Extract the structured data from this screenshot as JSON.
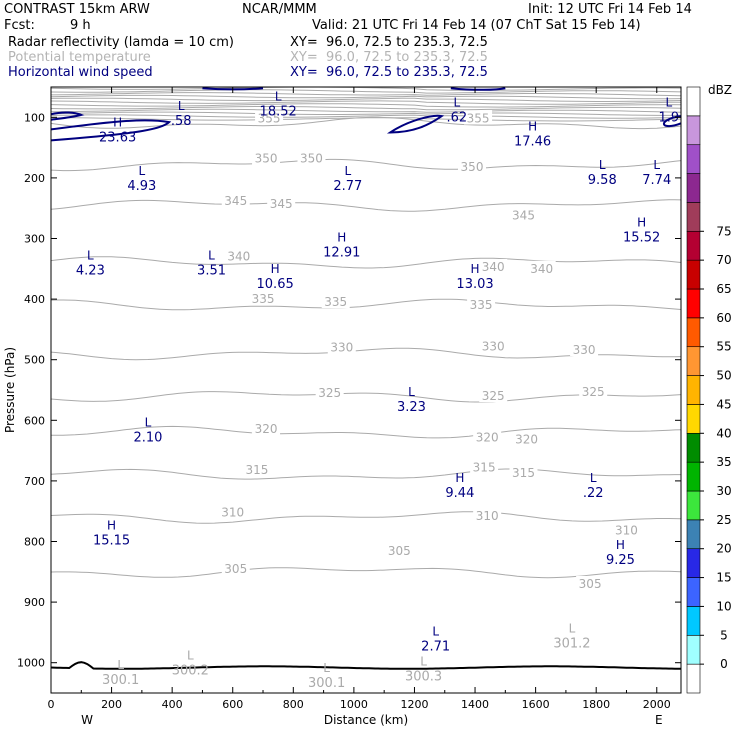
{
  "header": {
    "title": "CONTRAST 15km ARW",
    "center": "NCAR/MMM",
    "init": "Init: 12 UTC Fri 14 Feb 14",
    "fcst_label": "Fcst:",
    "fcst_value": "9 h",
    "valid": "Valid: 21 UTC Fri 14 Feb 14 (07 ChT Sat 15 Feb 14)"
  },
  "fields": [
    {
      "name": "Radar reflectivity (lamda = 10 cm)",
      "xy": "XY=  96.0, 72.5 to 235.3, 72.5",
      "color": "#000000"
    },
    {
      "name": "Potential temperature",
      "xy": "XY=  96.0, 72.5 to 235.3, 72.5",
      "color": "#b4b4b4"
    },
    {
      "name": "Horizontal wind speed",
      "xy": "XY=  96.0, 72.5 to 235.3, 72.5",
      "color": "#000080"
    }
  ],
  "colorbar": {
    "unit": "dBZ",
    "labels": [
      "0",
      "5",
      "10",
      "15",
      "20",
      "25",
      "30",
      "35",
      "40",
      "45",
      "50",
      "55",
      "60",
      "65",
      "70",
      "75"
    ],
    "colors": [
      "#ffffff",
      "#a0ffff",
      "#00c8ff",
      "#3c64ff",
      "#2828e6",
      "#3c82b4",
      "#3ce63c",
      "#00b400",
      "#008c00",
      "#ffd800",
      "#ffb400",
      "#ff9632",
      "#ff5a00",
      "#ff0000",
      "#c80000",
      "#b40032",
      "#a03c5a",
      "#8c2890",
      "#a050c8",
      "#c896dc",
      "#ffffff"
    ]
  },
  "chart_data": {
    "type": "cross-section",
    "xlabel": "Distance (km)",
    "ylabel": "Pressure (hPa)",
    "xlim": [
      0,
      2080
    ],
    "ylim": [
      1050,
      50
    ],
    "xticks": [
      "0",
      "200",
      "400",
      "600",
      "800",
      "1000",
      "1200",
      "1400",
      "1600",
      "1800",
      "2000"
    ],
    "yticks": [
      "100",
      "200",
      "300",
      "400",
      "500",
      "600",
      "700",
      "800",
      "900",
      "1000"
    ],
    "x_end_labels": {
      "left": "W",
      "right": "E"
    },
    "theta_contours": [
      {
        "level": 355,
        "p": 110
      },
      {
        "level": 350,
        "p": 178
      },
      {
        "level": 345,
        "p": 245
      },
      {
        "level": 340,
        "p": 340
      },
      {
        "level": 335,
        "p": 410
      },
      {
        "level": 330,
        "p": 490
      },
      {
        "level": 325,
        "p": 560
      },
      {
        "level": 320,
        "p": 620
      },
      {
        "level": 315,
        "p": 690
      },
      {
        "level": 310,
        "p": 760
      },
      {
        "level": 305,
        "p": 850
      }
    ],
    "theta_labels": [
      {
        "text": "355",
        "x": 720,
        "p": 102
      },
      {
        "text": "355",
        "x": 1410,
        "p": 102
      },
      {
        "text": "350",
        "x": 710,
        "p": 168
      },
      {
        "text": "350",
        "x": 860,
        "p": 168
      },
      {
        "text": "350",
        "x": 1390,
        "p": 182
      },
      {
        "text": "345",
        "x": 610,
        "p": 238
      },
      {
        "text": "345",
        "x": 760,
        "p": 243
      },
      {
        "text": "345",
        "x": 1560,
        "p": 262
      },
      {
        "text": "340",
        "x": 620,
        "p": 330
      },
      {
        "text": "340",
        "x": 1460,
        "p": 347
      },
      {
        "text": "340",
        "x": 1620,
        "p": 350
      },
      {
        "text": "335",
        "x": 700,
        "p": 400
      },
      {
        "text": "335",
        "x": 940,
        "p": 405
      },
      {
        "text": "335",
        "x": 1420,
        "p": 410
      },
      {
        "text": "330",
        "x": 960,
        "p": 480
      },
      {
        "text": "330",
        "x": 1460,
        "p": 478
      },
      {
        "text": "330",
        "x": 1760,
        "p": 484
      },
      {
        "text": "325",
        "x": 920,
        "p": 555
      },
      {
        "text": "325",
        "x": 1460,
        "p": 560
      },
      {
        "text": "325",
        "x": 1790,
        "p": 553
      },
      {
        "text": "320",
        "x": 710,
        "p": 614
      },
      {
        "text": "320",
        "x": 1440,
        "p": 628
      },
      {
        "text": "320",
        "x": 1570,
        "p": 632
      },
      {
        "text": "315",
        "x": 680,
        "p": 682
      },
      {
        "text": "315",
        "x": 1430,
        "p": 678
      },
      {
        "text": "315",
        "x": 1560,
        "p": 687
      },
      {
        "text": "310",
        "x": 600,
        "p": 752
      },
      {
        "text": "310",
        "x": 1440,
        "p": 758
      },
      {
        "text": "310",
        "x": 1900,
        "p": 782
      },
      {
        "text": "305",
        "x": 610,
        "p": 845
      },
      {
        "text": "305",
        "x": 1150,
        "p": 816
      },
      {
        "text": "305",
        "x": 1780,
        "p": 870
      }
    ],
    "wind_extrema": [
      {
        "mark": "L",
        "value": ".58",
        "x": 430,
        "p": 88
      },
      {
        "mark": "L",
        "value": "18.52",
        "x": 750,
        "p": 72
      },
      {
        "mark": "L",
        "value": ".62",
        "x": 1340,
        "p": 82
      },
      {
        "mark": "L",
        "value": "1.9",
        "x": 2040,
        "p": 82
      },
      {
        "mark": "H",
        "value": "23.63",
        "x": 220,
        "p": 115
      },
      {
        "mark": "H",
        "value": "17.46",
        "x": 1590,
        "p": 122
      },
      {
        "mark": "L",
        "value": "4.93",
        "x": 300,
        "p": 195
      },
      {
        "mark": "L",
        "value": "2.77",
        "x": 980,
        "p": 195
      },
      {
        "mark": "L",
        "value": "9.58",
        "x": 1820,
        "p": 185
      },
      {
        "mark": "L",
        "value": "7.74",
        "x": 2000,
        "p": 185
      },
      {
        "mark": "H",
        "value": "15.52",
        "x": 1950,
        "p": 280
      },
      {
        "mark": "H",
        "value": "12.91",
        "x": 960,
        "p": 305
      },
      {
        "mark": "L",
        "value": "4.23",
        "x": 130,
        "p": 335
      },
      {
        "mark": "L",
        "value": "3.51",
        "x": 530,
        "p": 335
      },
      {
        "mark": "H",
        "value": "10.65",
        "x": 740,
        "p": 357
      },
      {
        "mark": "H",
        "value": "13.03",
        "x": 1400,
        "p": 357
      },
      {
        "mark": "L",
        "value": "3.23",
        "x": 1190,
        "p": 560
      },
      {
        "mark": "L",
        "value": "2.10",
        "x": 320,
        "p": 610
      },
      {
        "mark": "H",
        "value": "9.44",
        "x": 1350,
        "p": 702
      },
      {
        "mark": "L",
        "value": ".22",
        "x": 1790,
        "p": 702
      },
      {
        "mark": "H",
        "value": "15.15",
        "x": 200,
        "p": 780
      },
      {
        "mark": "H",
        "value": "9.25",
        "x": 1880,
        "p": 812
      }
    ],
    "theta_extrema": [
      {
        "mark": "L",
        "value": "301.2",
        "x": 1720,
        "p": 950
      },
      {
        "mark": "L",
        "value": "300.1",
        "x": 230,
        "p": 1010
      },
      {
        "mark": "L",
        "value": "300.2",
        "x": 460,
        "p": 995
      },
      {
        "mark": "L",
        "value": "300.1",
        "x": 910,
        "p": 1015
      },
      {
        "mark": "L",
        "value": "300.3",
        "x": 1230,
        "p": 1005
      }
    ],
    "misc_extrema": [
      {
        "mark": "L",
        "value": "2.71",
        "x": 1270,
        "p": 955
      }
    ],
    "terrain_p": 1008,
    "grid": false,
    "legend": "right colorbar"
  }
}
